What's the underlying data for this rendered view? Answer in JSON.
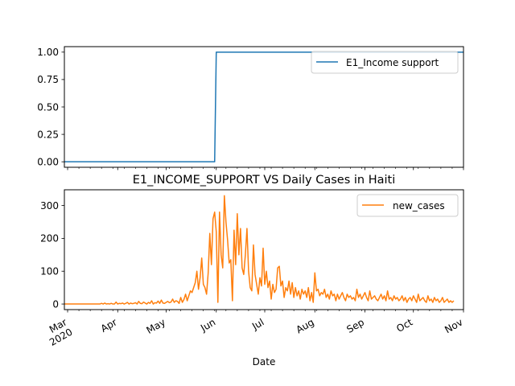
{
  "chart_data": [
    {
      "type": "line",
      "title": "",
      "xlabel": "",
      "ylabel": "",
      "ylim": [
        -0.05,
        1.05
      ],
      "xlim": [
        "2020-02-28",
        "2020-11-01"
      ],
      "yticks": [
        0.0,
        0.25,
        0.5,
        0.75,
        1.0
      ],
      "ytick_labels": [
        "0.00",
        "0.25",
        "0.50",
        "0.75",
        "1.00"
      ],
      "grid": false,
      "legend_position": "top-right",
      "series": [
        {
          "name": "E1_Income support",
          "color": "#1f77b4",
          "points": [
            [
              "2020-02-28",
              0
            ],
            [
              "2020-05-31",
              0
            ],
            [
              "2020-06-01",
              1
            ],
            [
              "2020-11-01",
              1
            ]
          ]
        }
      ]
    },
    {
      "type": "line",
      "title": "E1_INCOME_SUPPORT VS Daily Cases in Haiti",
      "xlabel": "Date",
      "ylabel": "",
      "ylim": [
        -17,
        348
      ],
      "xlim": [
        "2020-02-28",
        "2020-11-01"
      ],
      "yticks": [
        0,
        100,
        200,
        300
      ],
      "ytick_labels": [
        "0",
        "100",
        "200",
        "300"
      ],
      "xticks": [
        "2020-03-01",
        "2020-04-01",
        "2020-05-01",
        "2020-06-01",
        "2020-07-01",
        "2020-08-01",
        "2020-09-01",
        "2020-10-01",
        "2020-11-01"
      ],
      "xtick_labels": [
        "Mar\n2020",
        "Apr",
        "May",
        "Jun",
        "Jul",
        "Aug",
        "Sep",
        "Oct",
        "Nov"
      ],
      "grid": false,
      "legend_position": "top-right",
      "series": [
        {
          "name": "new_cases",
          "color": "#ff7f0e",
          "start_date": "2020-02-28",
          "values": [
            0,
            0,
            0,
            0,
            0,
            0,
            0,
            0,
            0,
            0,
            0,
            0,
            0,
            0,
            0,
            0,
            0,
            0,
            0,
            0,
            0,
            0,
            0,
            2,
            0,
            3,
            0,
            1,
            0,
            2,
            0,
            0,
            6,
            0,
            2,
            1,
            3,
            0,
            2,
            5,
            0,
            3,
            1,
            2,
            4,
            0,
            8,
            2,
            1,
            6,
            3,
            0,
            5,
            2,
            10,
            0,
            4,
            3,
            9,
            2,
            12,
            3,
            2,
            5,
            8,
            4,
            6,
            15,
            5,
            10,
            8,
            2,
            20,
            5,
            14,
            30,
            10,
            25,
            40,
            35,
            50,
            65,
            100,
            45,
            80,
            140,
            60,
            50,
            30,
            95,
            215,
            120,
            260,
            280,
            220,
            5,
            280,
            150,
            110,
            330,
            250,
            195,
            125,
            135,
            10,
            225,
            120,
            275,
            150,
            230,
            110,
            90,
            150,
            230,
            100,
            50,
            40,
            180,
            90,
            60,
            30,
            80,
            55,
            170,
            60,
            100,
            50,
            70,
            15,
            60,
            35,
            45,
            110,
            115,
            55,
            70,
            20,
            50,
            40,
            70,
            30,
            65,
            20,
            50,
            25,
            40,
            15,
            45,
            30,
            40,
            20,
            50,
            10,
            35,
            5,
            95,
            40,
            45,
            25,
            35,
            30,
            45,
            20,
            30,
            15,
            40,
            25,
            30,
            10,
            30,
            15,
            25,
            35,
            20,
            10,
            30,
            20,
            25,
            15,
            20,
            10,
            45,
            20,
            30,
            15,
            25,
            35,
            20,
            10,
            40,
            15,
            20,
            25,
            15,
            10,
            20,
            30,
            15,
            25,
            10,
            40,
            15,
            20,
            10,
            25,
            15,
            20,
            10,
            15,
            25,
            10,
            20,
            5,
            15,
            20,
            10,
            25,
            15,
            5,
            30,
            10,
            15,
            20,
            10,
            5,
            25,
            10,
            15,
            5,
            20,
            10,
            15,
            5,
            10,
            20,
            5,
            10,
            15,
            5,
            10,
            5,
            10
          ]
        }
      ]
    }
  ]
}
